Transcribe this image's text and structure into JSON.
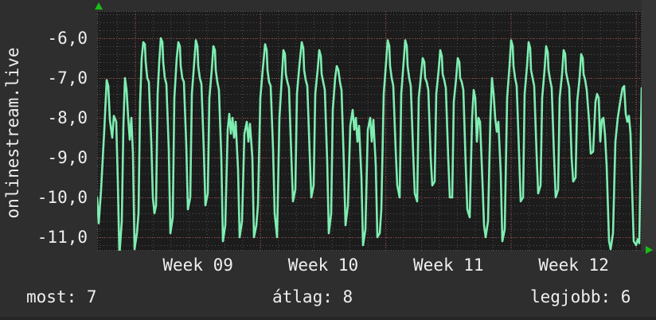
{
  "title_vertical": "onlinestream.live",
  "footer": {
    "most": "most: 7",
    "atlag": "átlag: 8",
    "legjobb": "legjobb: 6"
  },
  "colors": {
    "outer_bg": "#2e2e2e",
    "plot_bg": "#1c1c1c",
    "right_band": "#353535",
    "grid_minor": "#505050",
    "grid_major_red": "#a34747",
    "border_dots": "#5a5a5a",
    "series_green": "#7eedb1",
    "arrow_green": "#17bd17",
    "text": "#efefef"
  },
  "icons": {
    "up_arrow": "axis-arrow-up",
    "right_arrow": "axis-arrow-right"
  },
  "chart_data": {
    "type": "line",
    "title": "onlinestream.live",
    "xlabel": "",
    "ylabel": "onlinestream.live",
    "grid": true,
    "legend": "none",
    "ylim": [
      -11.34,
      -5.32
    ],
    "x_range_days": 30.5,
    "y_ticks": [
      {
        "label": "-6,0",
        "value": -6
      },
      {
        "label": "-7,0",
        "value": -7
      },
      {
        "label": "-8,0",
        "value": -8
      },
      {
        "label": "-9,0",
        "value": -9
      },
      {
        "label": "-10,0",
        "value": -10
      },
      {
        "label": "-11,0",
        "value": -11
      }
    ],
    "x_ticks": [
      {
        "label": "Week 09"
      },
      {
        "label": "Week 10"
      },
      {
        "label": "Week 11"
      },
      {
        "label": "Week 12"
      }
    ],
    "stats": {
      "most": 7,
      "atlag": 8,
      "legjobb": 6
    },
    "series": [
      {
        "name": "onlinestream.live",
        "color": "#7eedb1",
        "points": [
          [
            0,
            -10.0
          ],
          [
            2,
            -10.65
          ],
          [
            5,
            -9.8
          ],
          [
            9,
            -8.3
          ],
          [
            12,
            -7.05
          ],
          [
            14,
            -7.2
          ],
          [
            16,
            -8.05
          ],
          [
            19,
            -8.5
          ],
          [
            21,
            -7.95
          ],
          [
            24,
            -8.1
          ],
          [
            26,
            -9.6
          ],
          [
            28,
            -11.45
          ],
          [
            31,
            -10.6
          ],
          [
            33,
            -8.2
          ],
          [
            35,
            -7.0
          ],
          [
            37,
            -7.3
          ],
          [
            39,
            -8.0
          ],
          [
            41,
            -8.55
          ],
          [
            43,
            -8.0
          ],
          [
            45,
            -8.9
          ],
          [
            47,
            -11.3
          ],
          [
            50,
            -10.9
          ],
          [
            52,
            -10.4
          ],
          [
            54,
            -7.6
          ],
          [
            56,
            -6.5
          ],
          [
            58,
            -6.1
          ],
          [
            60,
            -6.15
          ],
          [
            61,
            -6.6
          ],
          [
            63,
            -7.0
          ],
          [
            65,
            -7.1
          ],
          [
            68,
            -8.6
          ],
          [
            70,
            -10.0
          ],
          [
            72,
            -10.4
          ],
          [
            74,
            -10.2
          ],
          [
            76,
            -7.4
          ],
          [
            78,
            -6.6
          ],
          [
            80,
            -6.0
          ],
          [
            82,
            -6.1
          ],
          [
            83,
            -6.6
          ],
          [
            85,
            -7.0
          ],
          [
            87,
            -7.15
          ],
          [
            90,
            -8.8
          ],
          [
            92,
            -10.9
          ],
          [
            95,
            -10.5
          ],
          [
            97,
            -7.5
          ],
          [
            100,
            -6.5
          ],
          [
            102,
            -6.1
          ],
          [
            104,
            -6.2
          ],
          [
            105,
            -6.7
          ],
          [
            107,
            -7.0
          ],
          [
            109,
            -7.1
          ],
          [
            112,
            -8.7
          ],
          [
            114,
            -10.3
          ],
          [
            117,
            -10.0
          ],
          [
            119,
            -7.4
          ],
          [
            122,
            -6.6
          ],
          [
            124,
            -6.05
          ],
          [
            126,
            -6.2
          ],
          [
            127,
            -6.7
          ],
          [
            129,
            -7.0
          ],
          [
            131,
            -7.15
          ],
          [
            134,
            -8.8
          ],
          [
            136,
            -10.2
          ],
          [
            139,
            -9.9
          ],
          [
            141,
            -7.5
          ],
          [
            144,
            -6.8
          ],
          [
            146,
            -6.2
          ],
          [
            148,
            -6.3
          ],
          [
            149,
            -6.8
          ],
          [
            151,
            -7.1
          ],
          [
            153,
            -7.3
          ],
          [
            156,
            -9.0
          ],
          [
            158,
            -11.1
          ],
          [
            161,
            -10.7
          ],
          [
            164,
            -8.3
          ],
          [
            166,
            -7.9
          ],
          [
            168,
            -8.4
          ],
          [
            170,
            -8.0
          ],
          [
            172,
            -8.5
          ],
          [
            174,
            -8.1
          ],
          [
            177,
            -9.3
          ],
          [
            179,
            -11.0
          ],
          [
            182,
            -10.6
          ],
          [
            185,
            -8.4
          ],
          [
            188,
            -8.1
          ],
          [
            190,
            -8.6
          ],
          [
            192,
            -8.15
          ],
          [
            195,
            -9.0
          ],
          [
            197,
            -11.0
          ],
          [
            200,
            -10.7
          ],
          [
            202,
            -10.2
          ],
          [
            205,
            -7.5
          ],
          [
            208,
            -6.8
          ],
          [
            211,
            -6.15
          ],
          [
            213,
            -6.3
          ],
          [
            214,
            -6.8
          ],
          [
            216,
            -7.1
          ],
          [
            218,
            -7.2
          ],
          [
            221,
            -8.8
          ],
          [
            223,
            -10.4
          ],
          [
            226,
            -11.0
          ],
          [
            229,
            -8.0
          ],
          [
            232,
            -7.0
          ],
          [
            234,
            -6.3
          ],
          [
            236,
            -6.4
          ],
          [
            237,
            -6.9
          ],
          [
            239,
            -7.1
          ],
          [
            241,
            -7.25
          ],
          [
            244,
            -9.0
          ],
          [
            246,
            -10.1
          ],
          [
            249,
            -9.8
          ],
          [
            251,
            -7.4
          ],
          [
            254,
            -6.7
          ],
          [
            257,
            -6.1
          ],
          [
            259,
            -6.25
          ],
          [
            260,
            -6.8
          ],
          [
            262,
            -7.05
          ],
          [
            264,
            -7.2
          ],
          [
            267,
            -8.9
          ],
          [
            269,
            -10.0
          ],
          [
            272,
            -9.7
          ],
          [
            274,
            -7.4
          ],
          [
            277,
            -6.8
          ],
          [
            279,
            -6.3
          ],
          [
            281,
            -6.45
          ],
          [
            282,
            -6.9
          ],
          [
            284,
            -7.1
          ],
          [
            286,
            -7.3
          ],
          [
            289,
            -9.1
          ],
          [
            291,
            -10.9
          ],
          [
            294,
            -10.4
          ],
          [
            296,
            -7.8
          ],
          [
            299,
            -7.0
          ],
          [
            301,
            -6.7
          ],
          [
            303,
            -6.8
          ],
          [
            305,
            -7.1
          ],
          [
            307,
            -7.3
          ],
          [
            310,
            -9.2
          ],
          [
            312,
            -10.7
          ],
          [
            315,
            -10.2
          ],
          [
            318,
            -8.2
          ],
          [
            321,
            -7.8
          ],
          [
            323,
            -8.3
          ],
          [
            325,
            -8.0
          ],
          [
            327,
            -8.6
          ],
          [
            329,
            -8.2
          ],
          [
            332,
            -9.5
          ],
          [
            334,
            -11.2
          ],
          [
            337,
            -10.8
          ],
          [
            340,
            -8.3
          ],
          [
            343,
            -8.0
          ],
          [
            345,
            -8.6
          ],
          [
            347,
            -8.05
          ],
          [
            350,
            -9.2
          ],
          [
            352,
            -11.0
          ],
          [
            355,
            -10.9
          ],
          [
            357,
            -10.3
          ],
          [
            360,
            -7.4
          ],
          [
            363,
            -6.6
          ],
          [
            365,
            -6.05
          ],
          [
            367,
            -6.2
          ],
          [
            368,
            -6.7
          ],
          [
            370,
            -7.0
          ],
          [
            372,
            -7.2
          ],
          [
            375,
            -8.8
          ],
          [
            377,
            -9.7
          ],
          [
            380,
            -10.0
          ],
          [
            382,
            -7.4
          ],
          [
            385,
            -6.6
          ],
          [
            387,
            -6.05
          ],
          [
            389,
            -6.2
          ],
          [
            390,
            -6.7
          ],
          [
            392,
            -7.0
          ],
          [
            394,
            -7.2
          ],
          [
            397,
            -8.9
          ],
          [
            399,
            -9.9
          ],
          [
            402,
            -10.1
          ],
          [
            404,
            -7.5
          ],
          [
            407,
            -6.9
          ],
          [
            409,
            -6.5
          ],
          [
            411,
            -6.6
          ],
          [
            412,
            -7.0
          ],
          [
            414,
            -7.1
          ],
          [
            416,
            -7.3
          ],
          [
            419,
            -9.0
          ],
          [
            421,
            -9.7
          ],
          [
            424,
            -9.6
          ],
          [
            426,
            -7.4
          ],
          [
            429,
            -6.8
          ],
          [
            431,
            -6.3
          ],
          [
            433,
            -6.45
          ],
          [
            434,
            -6.9
          ],
          [
            436,
            -7.05
          ],
          [
            438,
            -7.25
          ],
          [
            441,
            -9.0
          ],
          [
            443,
            -10.0
          ],
          [
            446,
            -10.0
          ],
          [
            448,
            -7.6
          ],
          [
            451,
            -7.0
          ],
          [
            453,
            -6.5
          ],
          [
            455,
            -6.6
          ],
          [
            456,
            -7.0
          ],
          [
            458,
            -7.1
          ],
          [
            460,
            -7.3
          ],
          [
            463,
            -9.2
          ],
          [
            465,
            -10.3
          ],
          [
            468,
            -10.5
          ],
          [
            471,
            -8.0
          ],
          [
            473,
            -7.3
          ],
          [
            475,
            -7.5
          ],
          [
            477,
            -8.6
          ],
          [
            479,
            -8.0
          ],
          [
            481,
            -8.1
          ],
          [
            484,
            -9.6
          ],
          [
            486,
            -10.7
          ],
          [
            488,
            -11.0
          ],
          [
            491,
            -10.6
          ],
          [
            494,
            -8.0
          ],
          [
            496,
            -7.0
          ],
          [
            498,
            -7.4
          ],
          [
            500,
            -8.0
          ],
          [
            502,
            -8.35
          ],
          [
            504,
            -8.1
          ],
          [
            507,
            -9.4
          ],
          [
            509,
            -11.1
          ],
          [
            512,
            -10.8
          ],
          [
            515,
            -7.5
          ],
          [
            518,
            -6.7
          ],
          [
            520,
            -6.05
          ],
          [
            522,
            -6.2
          ],
          [
            523,
            -6.7
          ],
          [
            525,
            -7.0
          ],
          [
            527,
            -7.2
          ],
          [
            530,
            -8.9
          ],
          [
            532,
            -10.1
          ],
          [
            535,
            -10.0
          ],
          [
            537,
            -7.4
          ],
          [
            540,
            -6.7
          ],
          [
            542,
            -6.1
          ],
          [
            544,
            -6.25
          ],
          [
            545,
            -6.8
          ],
          [
            547,
            -7.0
          ],
          [
            549,
            -7.2
          ],
          [
            552,
            -8.9
          ],
          [
            554,
            -9.9
          ],
          [
            557,
            -9.7
          ],
          [
            559,
            -7.5
          ],
          [
            562,
            -6.8
          ],
          [
            564,
            -6.2
          ],
          [
            566,
            -6.35
          ],
          [
            567,
            -6.8
          ],
          [
            569,
            -7.05
          ],
          [
            571,
            -7.25
          ],
          [
            574,
            -9.0
          ],
          [
            576,
            -10.0
          ],
          [
            579,
            -9.8
          ],
          [
            581,
            -7.5
          ],
          [
            584,
            -6.9
          ],
          [
            586,
            -6.3
          ],
          [
            588,
            -6.4
          ],
          [
            589,
            -6.85
          ],
          [
            591,
            -7.05
          ],
          [
            593,
            -7.25
          ],
          [
            596,
            -9.0
          ],
          [
            598,
            -9.6
          ],
          [
            601,
            -9.5
          ],
          [
            603,
            -7.6
          ],
          [
            606,
            -7.0
          ],
          [
            608,
            -6.4
          ],
          [
            610,
            -6.5
          ],
          [
            611,
            -6.9
          ],
          [
            613,
            -7.05
          ],
          [
            615,
            -7.3
          ],
          [
            618,
            -8.1
          ],
          [
            620,
            -8.9
          ],
          [
            623,
            -8.85
          ],
          [
            626,
            -7.6
          ],
          [
            628,
            -7.4
          ],
          [
            630,
            -7.5
          ],
          [
            632,
            -8.6
          ],
          [
            634,
            -8.05
          ],
          [
            636,
            -8.0
          ],
          [
            638,
            -8.45
          ],
          [
            640,
            -9.2
          ],
          [
            643,
            -11.1
          ],
          [
            645,
            -11.3
          ],
          [
            648,
            -10.9
          ],
          [
            651,
            -8.6
          ],
          [
            654,
            -8.0
          ],
          [
            657,
            -7.6
          ],
          [
            660,
            -7.25
          ],
          [
            662,
            -7.2
          ],
          [
            664,
            -7.9
          ],
          [
            666,
            -8.1
          ],
          [
            668,
            -7.95
          ],
          [
            670,
            -8.4
          ],
          [
            672,
            -9.8
          ],
          [
            674,
            -11.1
          ],
          [
            677,
            -11.2
          ],
          [
            679,
            -11.05
          ],
          [
            681,
            -11.15
          ],
          [
            683,
            -8.5
          ],
          [
            684,
            -7.25
          ]
        ]
      }
    ]
  }
}
